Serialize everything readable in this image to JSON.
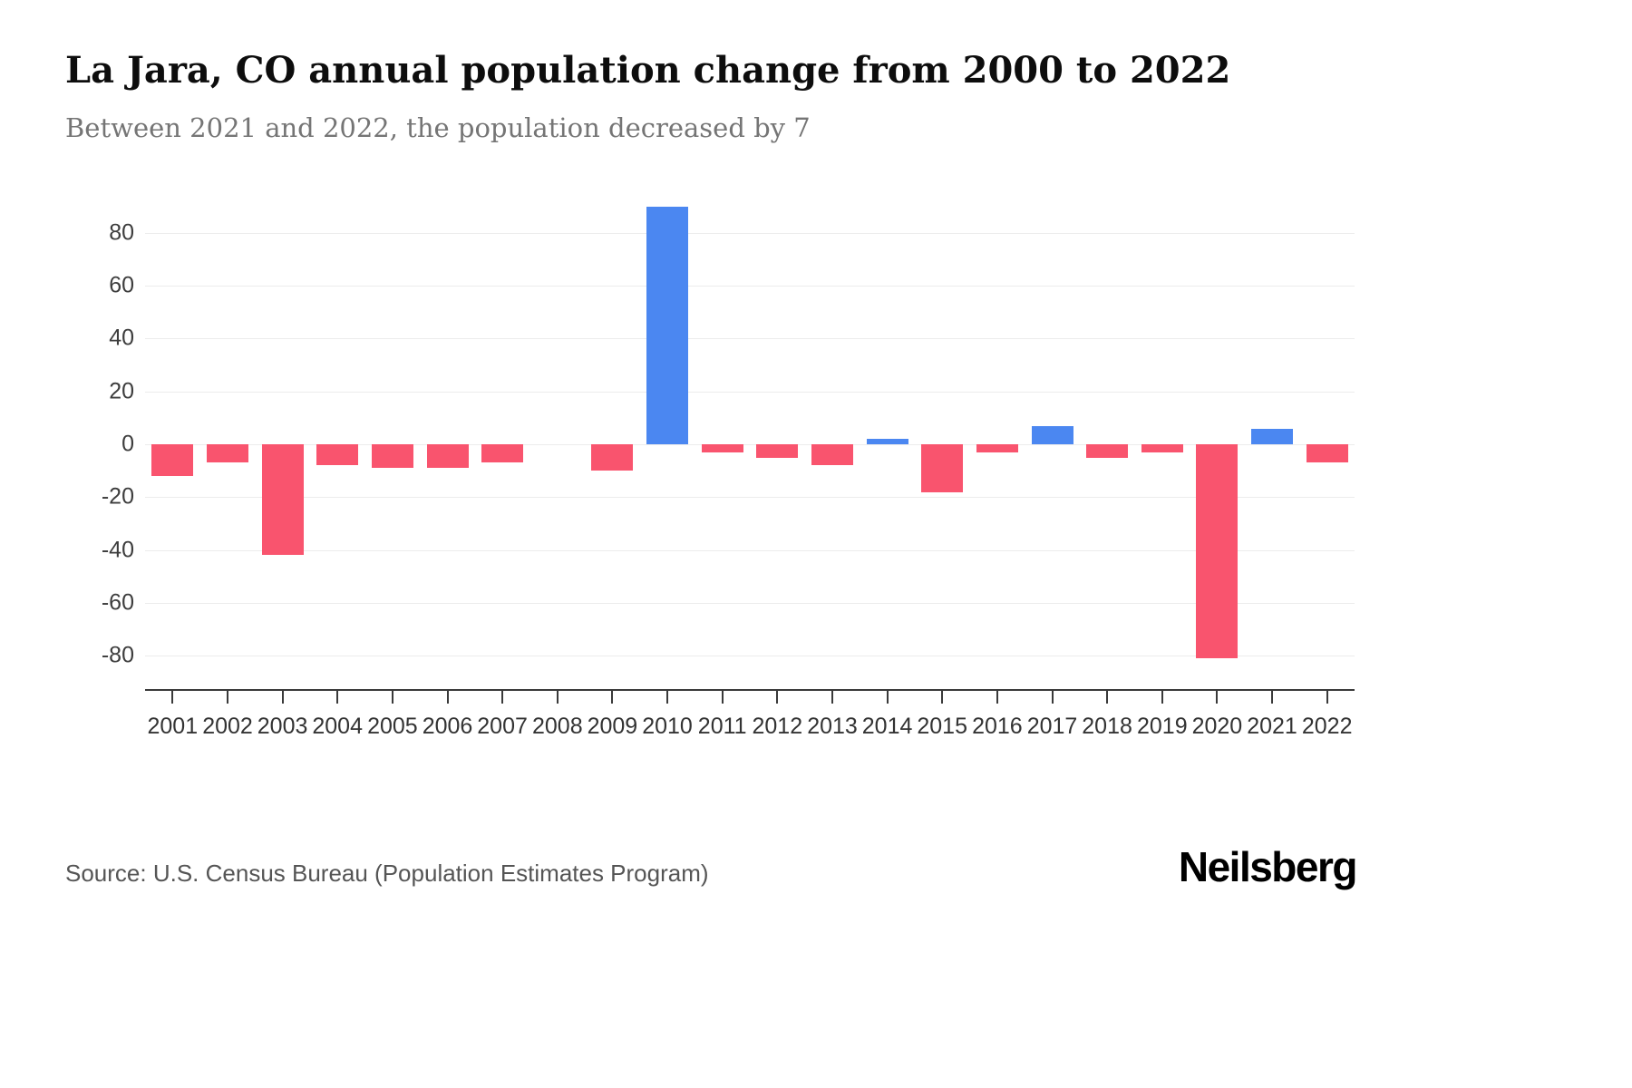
{
  "header": {
    "title": "La Jara, CO annual population change from 2000 to 2022",
    "subtitle": "Between 2021 and 2022, the population decreased by 7"
  },
  "footer": {
    "source": "Source: U.S. Census Bureau (Population Estimates Program)",
    "brand": "Neilsberg"
  },
  "chart_data": {
    "type": "bar",
    "title": "La Jara, CO annual population change from 2000 to 2022",
    "subtitle": "Between 2021 and 2022, the population decreased by 7",
    "categories": [
      "2001",
      "2002",
      "2003",
      "2004",
      "2005",
      "2006",
      "2007",
      "2008",
      "2009",
      "2010",
      "2011",
      "2012",
      "2013",
      "2014",
      "2015",
      "2016",
      "2017",
      "2018",
      "2019",
      "2020",
      "2021",
      "2022"
    ],
    "values": [
      -12,
      -7,
      -42,
      -8,
      -9,
      -9,
      -7,
      0,
      -10,
      90,
      -3,
      -5,
      -8,
      2,
      -18,
      -3,
      7,
      -5,
      -3,
      -81,
      6,
      -7
    ],
    "xlabel": "",
    "ylabel": "",
    "yticks": [
      80,
      60,
      40,
      20,
      0,
      -20,
      -40,
      -60,
      -80
    ],
    "ylim": [
      -93,
      94
    ],
    "grid": true,
    "legend_position": "none",
    "colors": {
      "positive": "#4b87f1",
      "negative": "#f9546e",
      "gridline": "#ececec",
      "axis": "#3a3a3a"
    }
  }
}
